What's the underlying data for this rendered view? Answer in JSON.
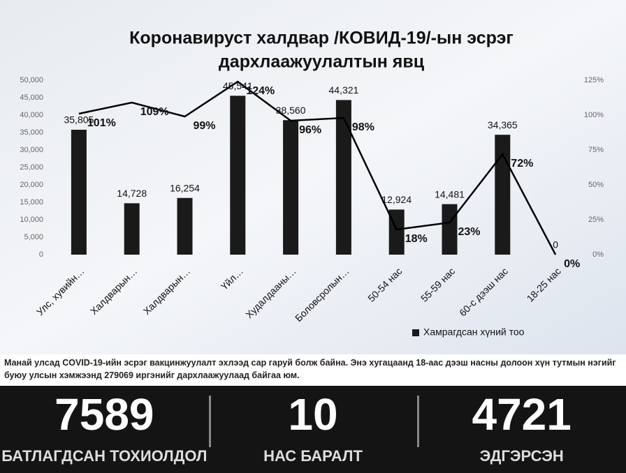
{
  "chart_data": {
    "type": "bar",
    "title": [
      "Коронавируст халдвар /КОВИД-19/-ын эсрэг",
      "дархлаажуулалтын явц"
    ],
    "categories": [
      "Улс, хувийн…",
      "Халдварын…",
      "Халдварын…",
      "Үйл…",
      "Худалдааны…",
      "Боловсролын…",
      "50-54 нас",
      "55-59 нас",
      "60-с дээш нас",
      "18-25 нас"
    ],
    "series": [
      {
        "name": "Хамрагдсан хүний тоо",
        "type": "bar",
        "color": "#1a1a1a",
        "values": [
          35805,
          14728,
          16254,
          45541,
          38560,
          44321,
          12924,
          14481,
          34365,
          0
        ],
        "value_labels": [
          "35,805",
          "14,728",
          "16,254",
          "45,541",
          "38,560",
          "44,321",
          "12,924",
          "14,481",
          "34,365",
          "0"
        ]
      },
      {
        "type": "line",
        "axis": "y2",
        "color": "#000000",
        "values": [
          101,
          109,
          99,
          124,
          96,
          98,
          18,
          23,
          72,
          0
        ],
        "value_labels": [
          "101%",
          "109%",
          "99%",
          "124%",
          "96%",
          "98%",
          "18%",
          "23%",
          "72%",
          "0%"
        ]
      }
    ],
    "ylim": [
      0,
      50000
    ],
    "yticks": [
      0,
      {
        "value": 5000,
        "label": "5,000"
      },
      {
        "value": 10000,
        "label": "10,000"
      },
      {
        "value": 15000,
        "label": "15,000"
      },
      {
        "value": 20000,
        "label": "20,000"
      },
      {
        "value": 25000,
        "label": "25,000"
      },
      {
        "value": 30000,
        "label": "30,000"
      },
      {
        "value": 35000,
        "label": "35,000"
      },
      {
        "value": 40000,
        "label": "40,000"
      },
      {
        "value": 45000,
        "label": "45,000"
      },
      {
        "value": 50000,
        "label": "50,000"
      }
    ],
    "y2lim": [
      0,
      125
    ],
    "y2ticks": [
      {
        "value": 0,
        "label": "0%"
      },
      {
        "value": 25,
        "label": "25%"
      },
      {
        "value": 50,
        "label": "50%"
      },
      {
        "value": 75,
        "label": "75%"
      },
      {
        "value": 100,
        "label": "100%"
      },
      {
        "value": 125,
        "label": "125%"
      }
    ],
    "legend": "bottom-right",
    "grid": false
  },
  "caption": "Манай улсад COVID-19-ийн эсрэг вакцинжуулалт эхлээд сар гаруй болж байна. Энэ хугацаанд 18-аас дээш насны долоон хүн тутмын нэгийг буюу улсын хэмжээнд 279069 иргэнийг дархлаажуулаад байгаа юм.",
  "stats": [
    {
      "value": "7589",
      "label": "БАТЛАГДСАН ТОХИОЛДОЛ"
    },
    {
      "value": "10",
      "label": "НАС БАРАЛТ"
    },
    {
      "value": "4721",
      "label": "ЭДГЭРСЭН"
    }
  ]
}
